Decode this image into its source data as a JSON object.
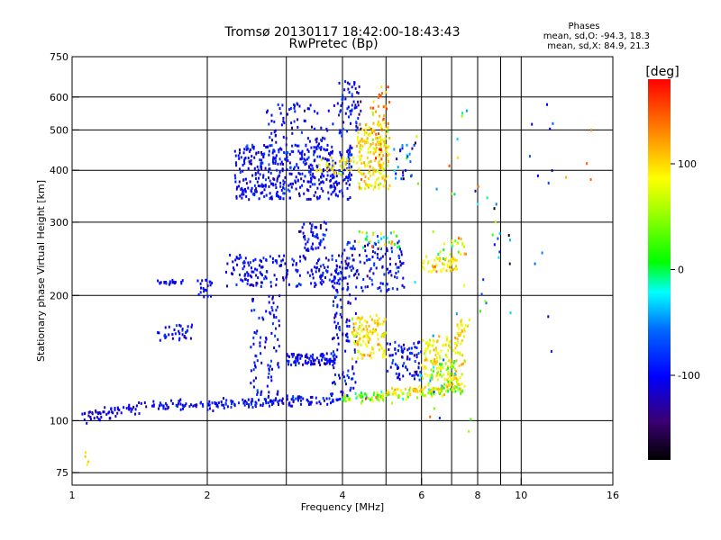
{
  "chart_data": {
    "type": "scatter",
    "title": "Tromsø 20130117 18:42:00-18:43:43",
    "subtitle": "RwPretec (Bp)",
    "xlabel": "Frequency [MHz]",
    "ylabel": "Stationary phase Virtual Height [km]",
    "x_scale": "log",
    "y_scale": "log",
    "xlim": [
      1,
      16
    ],
    "ylim": [
      70,
      750
    ],
    "x_ticks": [
      {
        "value": 1,
        "label": "1"
      },
      {
        "value": 2,
        "label": "2"
      },
      {
        "value": 4,
        "label": "4"
      },
      {
        "value": 6,
        "label": "6"
      },
      {
        "value": 8,
        "label": "8"
      },
      {
        "value": 10,
        "label": "10"
      },
      {
        "value": 16,
        "label": "16"
      }
    ],
    "x_gridlines": [
      1,
      2,
      3,
      4,
      5,
      6,
      7,
      8,
      9,
      10,
      16
    ],
    "y_ticks": [
      {
        "value": 75,
        "label": "75"
      },
      {
        "value": 100,
        "label": "100"
      },
      {
        "value": 200,
        "label": "200"
      },
      {
        "value": 300,
        "label": "300"
      },
      {
        "value": 400,
        "label": "400"
      },
      {
        "value": 500,
        "label": "500"
      },
      {
        "value": 600,
        "label": "600"
      },
      {
        "value": 750,
        "label": "750"
      }
    ],
    "grid": true,
    "phase_stats": {
      "heading": "Phases",
      "o_line": "mean, sd,O: -94.3, 18.3",
      "x_line": "mean, sd,X:  84.9, 21.3"
    },
    "colorbar": {
      "label": "[deg]",
      "range": [
        -180,
        180
      ],
      "ticks": [
        {
          "value": 100,
          "label": "100"
        },
        {
          "value": 0,
          "label": "0"
        },
        {
          "value": -100,
          "label": "-100"
        }
      ]
    },
    "clusters": [
      {
        "kind": "trace",
        "x": [
          1.05,
          1.5
        ],
        "y": [
          102,
          108
        ],
        "n": 60,
        "phase": -110,
        "spread": 8,
        "jitter": 0.02
      },
      {
        "kind": "trace",
        "x": [
          1.5,
          4.0
        ],
        "y": [
          108,
          113
        ],
        "n": 180,
        "phase": -100,
        "spread": 15,
        "jitter": 0.015
      },
      {
        "kind": "trace",
        "x": [
          4.0,
          7.5
        ],
        "y": [
          113,
          118
        ],
        "n": 120,
        "phase": 50,
        "spread": 40,
        "jitter": 0.015
      },
      {
        "kind": "trace",
        "x": [
          5.0,
          7.5
        ],
        "y": [
          117,
          122
        ],
        "n": 60,
        "phase": 95,
        "spread": 15,
        "jitter": 0.015
      },
      {
        "kind": "blob",
        "x": [
          1.55,
          1.85
        ],
        "y": [
          155,
          170
        ],
        "n": 35,
        "phase": -100,
        "spread": 15
      },
      {
        "kind": "blob",
        "x": [
          2.5,
          2.9
        ],
        "y": [
          110,
          200
        ],
        "n": 90,
        "phase": -100,
        "spread": 15
      },
      {
        "kind": "blob",
        "x": [
          3.0,
          3.9
        ],
        "y": [
          136,
          145
        ],
        "n": 90,
        "phase": -105,
        "spread": 15
      },
      {
        "kind": "blob",
        "x": [
          3.8,
          4.3
        ],
        "y": [
          115,
          240
        ],
        "n": 110,
        "phase": -100,
        "spread": 20
      },
      {
        "kind": "blob",
        "x": [
          4.2,
          5.0
        ],
        "y": [
          140,
          180
        ],
        "n": 120,
        "phase": 95,
        "spread": 20
      },
      {
        "kind": "blob",
        "x": [
          5.0,
          6.0
        ],
        "y": [
          125,
          155
        ],
        "n": 80,
        "phase": -100,
        "spread": 20
      },
      {
        "kind": "blob",
        "x": [
          6.0,
          7.5
        ],
        "y": [
          125,
          160
        ],
        "n": 120,
        "phase": 90,
        "spread": 20
      },
      {
        "kind": "blob",
        "x": [
          6.2,
          7.2
        ],
        "y": [
          118,
          140
        ],
        "n": 50,
        "phase": 40,
        "spread": 40
      },
      {
        "kind": "blob",
        "x": [
          7.2,
          7.7
        ],
        "y": [
          160,
          175
        ],
        "n": 20,
        "phase": 90,
        "spread": 15
      },
      {
        "kind": "blob",
        "x": [
          1.55,
          1.8
        ],
        "y": [
          212,
          218
        ],
        "n": 20,
        "phase": -100,
        "spread": 10
      },
      {
        "kind": "blob",
        "x": [
          1.9,
          2.05
        ],
        "y": [
          198,
          220
        ],
        "n": 20,
        "phase": -100,
        "spread": 10
      },
      {
        "kind": "blob",
        "x": [
          2.2,
          4.0
        ],
        "y": [
          210,
          250
        ],
        "n": 190,
        "phase": -100,
        "spread": 15
      },
      {
        "kind": "blob",
        "x": [
          3.2,
          3.7
        ],
        "y": [
          255,
          300
        ],
        "n": 50,
        "phase": -100,
        "spread": 15
      },
      {
        "kind": "blob",
        "x": [
          4.0,
          5.5
        ],
        "y": [
          205,
          270
        ],
        "n": 120,
        "phase": -100,
        "spread": 20
      },
      {
        "kind": "blob",
        "x": [
          4.3,
          5.4
        ],
        "y": [
          260,
          285
        ],
        "n": 30,
        "phase": 30,
        "spread": 60
      },
      {
        "kind": "blob",
        "x": [
          6.0,
          7.3
        ],
        "y": [
          228,
          250
        ],
        "n": 50,
        "phase": 95,
        "spread": 20
      },
      {
        "kind": "blob",
        "x": [
          6.5,
          7.6
        ],
        "y": [
          250,
          275
        ],
        "n": 20,
        "phase": 60,
        "spread": 50
      },
      {
        "kind": "blob",
        "x": [
          2.3,
          4.2
        ],
        "y": [
          340,
          460
        ],
        "n": 460,
        "phase": -100,
        "spread": 15
      },
      {
        "kind": "blob",
        "x": [
          2.7,
          4.0
        ],
        "y": [
          460,
          580
        ],
        "n": 70,
        "phase": -100,
        "spread": 15
      },
      {
        "kind": "blob",
        "x": [
          3.9,
          4.4
        ],
        "y": [
          480,
          660
        ],
        "n": 60,
        "phase": -100,
        "spread": 20
      },
      {
        "kind": "blob",
        "x": [
          3.5,
          4.3
        ],
        "y": [
          390,
          430
        ],
        "n": 40,
        "phase": 90,
        "spread": 20
      },
      {
        "kind": "blob",
        "x": [
          4.3,
          5.1
        ],
        "y": [
          360,
          520
        ],
        "n": 180,
        "phase": 95,
        "spread": 20
      },
      {
        "kind": "blob",
        "x": [
          4.6,
          5.1
        ],
        "y": [
          420,
          640
        ],
        "n": 40,
        "phase": 130,
        "spread": 30
      },
      {
        "kind": "blob",
        "x": [
          5.2,
          5.8
        ],
        "y": [
          380,
          460
        ],
        "n": 25,
        "phase": -80,
        "spread": 40
      },
      {
        "kind": "blob",
        "x": [
          5.8,
          7.8
        ],
        "y": [
          90,
          560
        ],
        "n": 28,
        "phase": 40,
        "spread": 90
      },
      {
        "kind": "blob",
        "x": [
          7.8,
          9.5
        ],
        "y": [
          180,
          390
        ],
        "n": 22,
        "phase": -60,
        "spread": 90
      },
      {
        "kind": "blob",
        "x": [
          10.4,
          11.8
        ],
        "y": [
          140,
          650
        ],
        "n": 12,
        "phase": -100,
        "spread": 30
      },
      {
        "kind": "blob",
        "x": [
          12.5,
          14.5
        ],
        "y": [
          340,
          560
        ],
        "n": 4,
        "phase": 140,
        "spread": 40
      },
      {
        "kind": "blob",
        "x": [
          1.05,
          1.1
        ],
        "y": [
          78,
          90
        ],
        "n": 4,
        "phase": 110,
        "spread": 20
      }
    ]
  }
}
